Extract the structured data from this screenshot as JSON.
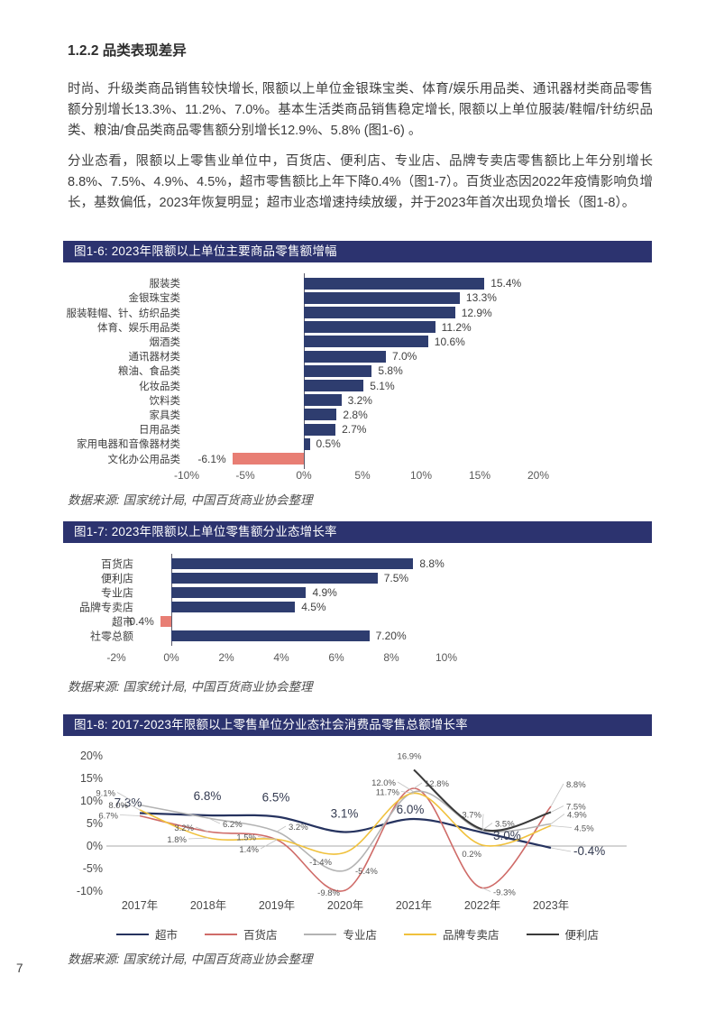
{
  "page_number": "7",
  "section_heading": "1.2.2 品类表现差异",
  "paragraphs": {
    "p1": "时尚、升级类商品销售较快增长, 限额以上单位金银珠宝类、体育/娱乐用品类、通讯器材类商品零售额分别增长13.3%、11.2%、7.0%。基本生活类商品销售稳定增长, 限额以上单位服装/鞋帽/针纺织品类、粮油/食品类商品零售额分别增长12.9%、5.8% (图1-6) 。",
    "p2": "分业态看，限额以上零售业单位中，百货店、便利店、专业店、品牌专卖店零售额比上年分别增长8.8%、7.5%、4.9%、4.5%，超市零售额比上年下降0.4%（图1-7）。百货业态因2022年疫情影响负增长，基数偏低，2023年恢复明显；超市业态增速持续放缓，并于2023年首次出现负增长（图1-8）。"
  },
  "colors": {
    "banner": "#2c336f",
    "bar_positive": "#2e3d6f",
    "bar_negative": "#e87e74",
    "axis_text": "#595959"
  },
  "chart_data": [
    {
      "type": "bar",
      "orientation": "horizontal",
      "title": "图1-6: 2023年限额以上单位主要商品零售额增幅",
      "categories": [
        "服装类",
        "金银珠宝类",
        "服装鞋帽、针、纺织品类",
        "体育、娱乐用品类",
        "烟酒类",
        "通讯器材类",
        "粮油、食品类",
        "化妆品类",
        "饮料类",
        "家具类",
        "日用品类",
        "家用电器和音像器材类",
        "文化办公用品类"
      ],
      "values": [
        15.4,
        13.3,
        12.9,
        11.2,
        10.6,
        7.0,
        5.8,
        5.1,
        3.2,
        2.8,
        2.7,
        0.5,
        -6.1
      ],
      "labels": [
        "15.4%",
        "13.3%",
        "12.9%",
        "11.2%",
        "10.6%",
        "7.0%",
        "5.8%",
        "5.1%",
        "3.2%",
        "2.8%",
        "2.7%",
        "0.5%",
        "-6.1%"
      ],
      "tick_values": [
        -10,
        -5,
        0,
        5,
        10,
        15,
        20
      ],
      "tick_labels": [
        "-10%",
        "-5%",
        "0%",
        "5%",
        "10%",
        "15%",
        "20%"
      ],
      "xlim": [
        -10,
        20
      ],
      "source": "数据来源: 国家统计局, 中国百货商业协会整理"
    },
    {
      "type": "bar",
      "orientation": "horizontal",
      "title": "图1-7: 2023年限额以上单位零售额分业态增长率",
      "categories": [
        "百货店",
        "便利店",
        "专业店",
        "品牌专卖店",
        "超市",
        "社零总额"
      ],
      "values": [
        8.8,
        7.5,
        4.9,
        4.5,
        -0.4,
        7.2
      ],
      "labels": [
        "8.8%",
        "7.5%",
        "4.9%",
        "4.5%",
        "-0.4%",
        "7.20%"
      ],
      "tick_values": [
        -2,
        0,
        2,
        4,
        6,
        8,
        10
      ],
      "tick_labels": [
        "-2%",
        "0%",
        "2%",
        "4%",
        "6%",
        "8%",
        "10%"
      ],
      "xlim": [
        -2,
        10
      ],
      "source": "数据来源: 国家统计局, 中国百货商业协会整理"
    },
    {
      "type": "line",
      "title": "图1-8: 2017-2023年限额以上零售单位分业态社会消费品零售总额增长率",
      "x": [
        "2017年",
        "2018年",
        "2019年",
        "2020年",
        "2021年",
        "2022年",
        "2023年"
      ],
      "series": [
        {
          "name": "超市",
          "color": "#26335f",
          "values": [
            7.3,
            6.8,
            6.5,
            3.1,
            6.0,
            3.0,
            -0.4
          ]
        },
        {
          "name": "百货店",
          "color": "#cf6b68",
          "values": [
            6.7,
            3.2,
            1.4,
            -9.8,
            12.8,
            -9.3,
            8.8
          ]
        },
        {
          "name": "专业店",
          "color": "#b3b3b3",
          "values": [
            9.1,
            6.2,
            3.2,
            -5.4,
            12.0,
            3.5,
            4.9
          ]
        },
        {
          "name": "品牌专卖店",
          "color": "#f0c13c",
          "values": [
            8.0,
            1.8,
            1.5,
            -1.4,
            11.7,
            0.2,
            4.5
          ]
        },
        {
          "name": "便利店",
          "color": "#3a3a3a",
          "values": [
            null,
            null,
            null,
            null,
            16.9,
            3.7,
            7.5
          ]
        }
      ],
      "y_tick_labels": [
        "20%",
        "15%",
        "10%",
        "5%",
        "0%",
        "-5%",
        "-10%"
      ],
      "y_tick_values": [
        20,
        15,
        10,
        5,
        0,
        -5,
        -10
      ],
      "ylim": [
        -10,
        20
      ],
      "grid": "zero-line-only",
      "legend_position": "bottom",
      "source": "数据来源: 国家统计局, 中国百货商业协会整理"
    }
  ]
}
